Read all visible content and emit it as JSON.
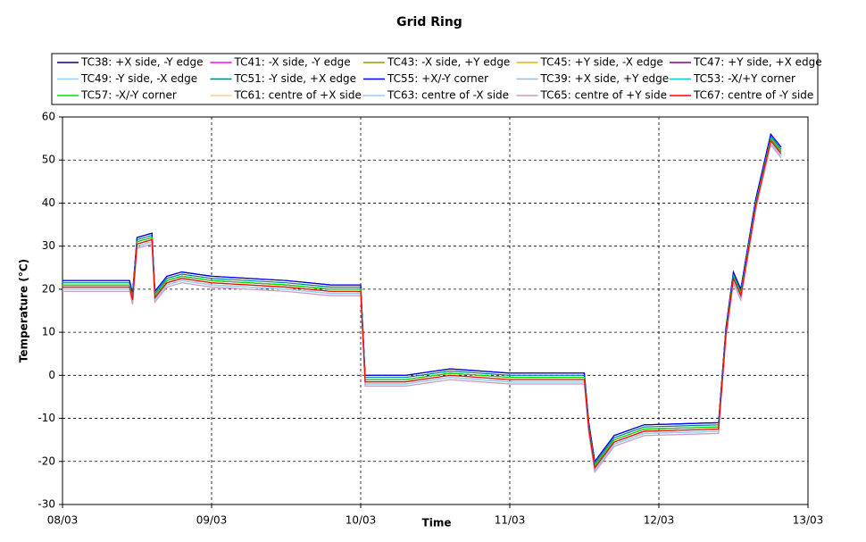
{
  "chart_data": {
    "type": "line",
    "title": "Grid Ring",
    "x_label": "Time",
    "y_label": "Temperature (°C)",
    "x": [
      0,
      0.45,
      0.47,
      0.5,
      0.6,
      0.62,
      0.7,
      0.8,
      1.0,
      1.5,
      1.8,
      2.0,
      2.03,
      2.3,
      2.6,
      3.0,
      3.5,
      3.53,
      3.57,
      3.7,
      3.9,
      4.4,
      4.45,
      4.5,
      4.55,
      4.65,
      4.75,
      4.82
    ],
    "xlim": [
      0,
      5
    ],
    "xticks": [
      {
        "value": 0,
        "label": "08/03"
      },
      {
        "value": 1,
        "label": "09/03"
      },
      {
        "value": 2,
        "label": "10/03"
      },
      {
        "value": 3,
        "label": "11/03"
      },
      {
        "value": 4,
        "label": "12/03"
      },
      {
        "value": 5,
        "label": "13/03"
      }
    ],
    "ylim": [
      -30,
      60
    ],
    "yticks": [
      -30,
      -20,
      -10,
      0,
      10,
      20,
      30,
      40,
      50,
      60
    ],
    "grid": true,
    "series": [
      {
        "name": "TC38: +X side, -Y edge",
        "color": "#000080",
        "values": [
          22,
          22,
          19,
          32,
          33,
          19.5,
          23,
          24,
          23,
          22,
          21,
          21,
          0,
          0,
          1.5,
          0.5,
          0.5,
          -11,
          -20,
          -14,
          -11.5,
          -11,
          11,
          24,
          20,
          41,
          56,
          53
        ]
      },
      {
        "name": "TC41: -X side, -Y edge",
        "color": "#ff00ff",
        "values": [
          20.5,
          20.5,
          17.5,
          30.5,
          31.5,
          18,
          21.5,
          22.5,
          21.5,
          20.5,
          19.5,
          19.5,
          -1.5,
          -1.5,
          0,
          -1,
          -1,
          -12.5,
          -21.5,
          -15.5,
          -13,
          -12.5,
          9.5,
          22.5,
          18.5,
          39.5,
          54.5,
          51.5
        ]
      },
      {
        "name": "TC43: -X side, +Y edge",
        "color": "#999900",
        "values": [
          21,
          21,
          18,
          31,
          32,
          18.5,
          22,
          23,
          22,
          21,
          20,
          20,
          -1,
          -1,
          0.5,
          -0.5,
          -0.5,
          -12,
          -21,
          -15,
          -12.5,
          -12,
          10,
          23,
          19,
          40,
          55,
          52
        ]
      },
      {
        "name": "TC45: +Y side, -X edge",
        "color": "#e6b800",
        "values": [
          20.5,
          20.5,
          17.5,
          30.5,
          31.5,
          18,
          21.5,
          22.5,
          21.5,
          20.5,
          19.5,
          19.5,
          -1.5,
          -1.5,
          0,
          -1,
          -1,
          -12.5,
          -21.5,
          -15.5,
          -13,
          -12.5,
          9.5,
          22.5,
          18.5,
          39.5,
          54.5,
          51.5
        ]
      },
      {
        "name": "TC47: +Y side, +X edge",
        "color": "#800080",
        "values": [
          21,
          21,
          18,
          31,
          32,
          18.5,
          22,
          23,
          22,
          21,
          20,
          20,
          -1,
          -1,
          0.5,
          -0.5,
          -0.5,
          -12,
          -21,
          -15,
          -12.5,
          -12,
          10,
          23,
          19,
          40,
          55,
          52
        ]
      },
      {
        "name": "TC49: -Y side, -X edge",
        "color": "#99ccff",
        "values": [
          20,
          20,
          17,
          30,
          31,
          17.5,
          21,
          22,
          21,
          20,
          19,
          19,
          -2,
          -2,
          -0.5,
          -1.5,
          -1.5,
          -13,
          -22,
          -16,
          -13.5,
          -13,
          9,
          22,
          18,
          39,
          54,
          51
        ]
      },
      {
        "name": "TC51: -Y side, +X edge",
        "color": "#008080",
        "values": [
          21.5,
          21.5,
          18.5,
          31.5,
          32.5,
          19,
          22.5,
          23.5,
          22.5,
          21.5,
          20.5,
          20.5,
          -0.5,
          -0.5,
          1,
          0,
          0,
          -11.5,
          -20.5,
          -14.5,
          -12,
          -11.5,
          10.5,
          23.5,
          19.5,
          40.5,
          55.5,
          52.5
        ]
      },
      {
        "name": "TC55: +X/-Y corner",
        "color": "#0000ff",
        "values": [
          22,
          22,
          19,
          32,
          33,
          19.5,
          23,
          24,
          23,
          22,
          21,
          21,
          0,
          0,
          1.5,
          0.5,
          0.5,
          -11,
          -20,
          -14,
          -11.5,
          -11,
          11,
          24,
          20,
          41,
          56,
          53
        ]
      },
      {
        "name": "TC39: +X side, +Y edge",
        "color": "#a0b8d8",
        "values": [
          21,
          21,
          18,
          31,
          32,
          18.5,
          22,
          23,
          22,
          21,
          20,
          20,
          -1,
          -1,
          0.5,
          -0.5,
          -0.5,
          -12,
          -21,
          -15,
          -12.5,
          -12,
          10,
          23,
          19,
          40,
          55,
          52
        ]
      },
      {
        "name": "TC53: -X/+Y corner",
        "color": "#00cccc",
        "values": [
          20,
          20,
          17,
          30,
          31,
          17.5,
          21,
          22,
          21,
          20,
          19,
          19,
          -2,
          -2,
          -0.5,
          -1.5,
          -1.5,
          -13,
          -22,
          -16,
          -13.5,
          -13,
          9,
          22,
          18,
          39,
          54,
          51
        ]
      },
      {
        "name": "TC57: -X/-Y corner",
        "color": "#00e000",
        "values": [
          21,
          21,
          18,
          31,
          32,
          18.5,
          22,
          23,
          22,
          21,
          20,
          20,
          -1,
          -1,
          0.5,
          -0.5,
          -0.5,
          -12,
          -21,
          -15,
          -12.5,
          -12,
          10,
          23,
          19,
          40,
          55,
          52
        ]
      },
      {
        "name": "TC61: centre of +X side",
        "color": "#ffcc99",
        "values": [
          19.5,
          19.5,
          16.5,
          29.5,
          30.5,
          17,
          20.5,
          21.5,
          20.5,
          19.5,
          18.5,
          18.5,
          -2.5,
          -2.5,
          -1,
          -2,
          -2,
          -13.5,
          -22.5,
          -16.5,
          -14,
          -13.5,
          8.5,
          21.5,
          17.5,
          38.5,
          53.5,
          50.5
        ]
      },
      {
        "name": "TC63: centre of -X side",
        "color": "#99ccff",
        "values": [
          20,
          20,
          17,
          30,
          31,
          17.5,
          21,
          22,
          21,
          20,
          19,
          19,
          -2,
          -2,
          -0.5,
          -1.5,
          -1.5,
          -13,
          -22,
          -16,
          -13.5,
          -13,
          9,
          22,
          18,
          39,
          54,
          51
        ]
      },
      {
        "name": "TC65: centre of +Y side",
        "color": "#cc99cc",
        "values": [
          19.5,
          19.5,
          16.5,
          29.5,
          30.5,
          17,
          20.5,
          21.5,
          20.5,
          19.5,
          18.5,
          18.5,
          -2.5,
          -2.5,
          -1,
          -2,
          -2,
          -13.5,
          -22.5,
          -16.5,
          -14,
          -13.5,
          8.5,
          21.5,
          17.5,
          38.5,
          53.5,
          50.5
        ]
      },
      {
        "name": "TC67: centre of -Y side",
        "color": "#ff0000",
        "values": [
          20.5,
          20.5,
          17.5,
          30.5,
          31.5,
          18,
          21.5,
          22.5,
          21.5,
          20.5,
          19.5,
          19.5,
          -1.5,
          -1.5,
          0,
          -1,
          -1,
          -12.5,
          -21.5,
          -15.5,
          -13,
          -12.5,
          9.5,
          22.5,
          18.5,
          39.5,
          54.5,
          51.5
        ]
      }
    ]
  }
}
